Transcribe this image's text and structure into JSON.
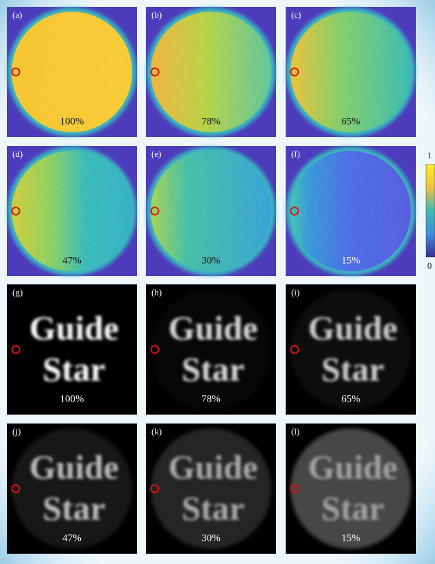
{
  "panels": [
    {
      "label": "(a)",
      "percent": "100%"
    },
    {
      "label": "(b)",
      "percent": "78%"
    },
    {
      "label": "(c)",
      "percent": "65%"
    },
    {
      "label": "(d)",
      "percent": "47%"
    },
    {
      "label": "(e)",
      "percent": "30%"
    },
    {
      "label": "(f)",
      "percent": "15%"
    },
    {
      "label": "(g)",
      "percent": "100%"
    },
    {
      "label": "(h)",
      "percent": "78%"
    },
    {
      "label": "(i)",
      "percent": "65%"
    },
    {
      "label": "(j)",
      "percent": "47%"
    },
    {
      "label": "(k)",
      "percent": "30%"
    },
    {
      "label": "(l)",
      "percent": "15%"
    }
  ],
  "image_text": [
    "Guide",
    "Star"
  ],
  "colorbar": {
    "max_label": "1",
    "min_label": "0"
  }
}
